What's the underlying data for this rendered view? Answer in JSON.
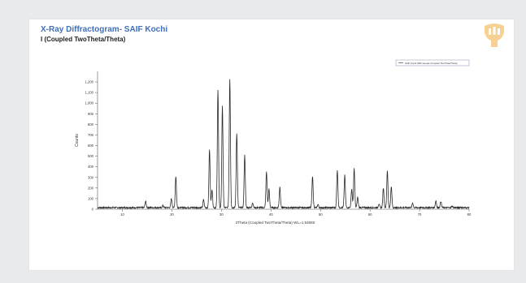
{
  "slide": {
    "title": "X-Ray Diffractogram- SAIF Kochi",
    "subtitle": "I (Coupled TwoTheta/Theta)"
  },
  "colors": {
    "title": "#3f6fb8",
    "line": "#2a2a2a",
    "logo": "#f0a93a"
  },
  "icons": {
    "logo": "saif-logo-icon"
  },
  "chart_data": {
    "type": "line",
    "title": "I (Coupled TwoTheta/Theta)",
    "xlabel": "2Theta (Coupled TwoTheta/Theta) WL=1.54060",
    "ylabel": "Counts",
    "xlim": [
      5,
      80
    ],
    "ylim": [
      0,
      1300
    ],
    "yticks": [
      0,
      100,
      200,
      300,
      400,
      500,
      600,
      700,
      800,
      900,
      1000,
      1100,
      1200
    ],
    "ytick_labels": [
      "0",
      "100",
      "200",
      "300",
      "400",
      "500",
      "600",
      "700",
      "800",
      "900",
      "1,000",
      "1,100",
      "1,200"
    ],
    "xticks": [
      10,
      20,
      30,
      40,
      50,
      60,
      70,
      80
    ],
    "xtick_labels": [
      "10",
      "20",
      "30",
      "40",
      "50",
      "60",
      "70",
      "80"
    ],
    "grid": false,
    "legend_position": "top-right",
    "legend": [
      "SAIF Kochi XRD sample (Coupled TwoTheta/Theta)"
    ],
    "baseline": 15,
    "peaks": [
      {
        "x": 14.7,
        "y": 75
      },
      {
        "x": 18.2,
        "y": 35
      },
      {
        "x": 19.9,
        "y": 100
      },
      {
        "x": 20.8,
        "y": 310
      },
      {
        "x": 26.4,
        "y": 90
      },
      {
        "x": 27.6,
        "y": 560
      },
      {
        "x": 28.1,
        "y": 190
      },
      {
        "x": 29.3,
        "y": 1130
      },
      {
        "x": 30.2,
        "y": 970
      },
      {
        "x": 31.7,
        "y": 1230
      },
      {
        "x": 33.1,
        "y": 720
      },
      {
        "x": 34.7,
        "y": 510
      },
      {
        "x": 36.3,
        "y": 60
      },
      {
        "x": 39.1,
        "y": 350
      },
      {
        "x": 39.6,
        "y": 190
      },
      {
        "x": 41.8,
        "y": 210
      },
      {
        "x": 48.4,
        "y": 310
      },
      {
        "x": 49.5,
        "y": 45
      },
      {
        "x": 53.4,
        "y": 370
      },
      {
        "x": 54.9,
        "y": 320
      },
      {
        "x": 56.3,
        "y": 190
      },
      {
        "x": 56.8,
        "y": 380
      },
      {
        "x": 57.5,
        "y": 110
      },
      {
        "x": 61.8,
        "y": 50
      },
      {
        "x": 62.7,
        "y": 200
      },
      {
        "x": 63.5,
        "y": 360
      },
      {
        "x": 64.3,
        "y": 210
      },
      {
        "x": 68.6,
        "y": 60
      },
      {
        "x": 73.3,
        "y": 80
      },
      {
        "x": 74.3,
        "y": 75
      },
      {
        "x": 76.6,
        "y": 30
      },
      {
        "x": 78.2,
        "y": 20
      }
    ]
  }
}
